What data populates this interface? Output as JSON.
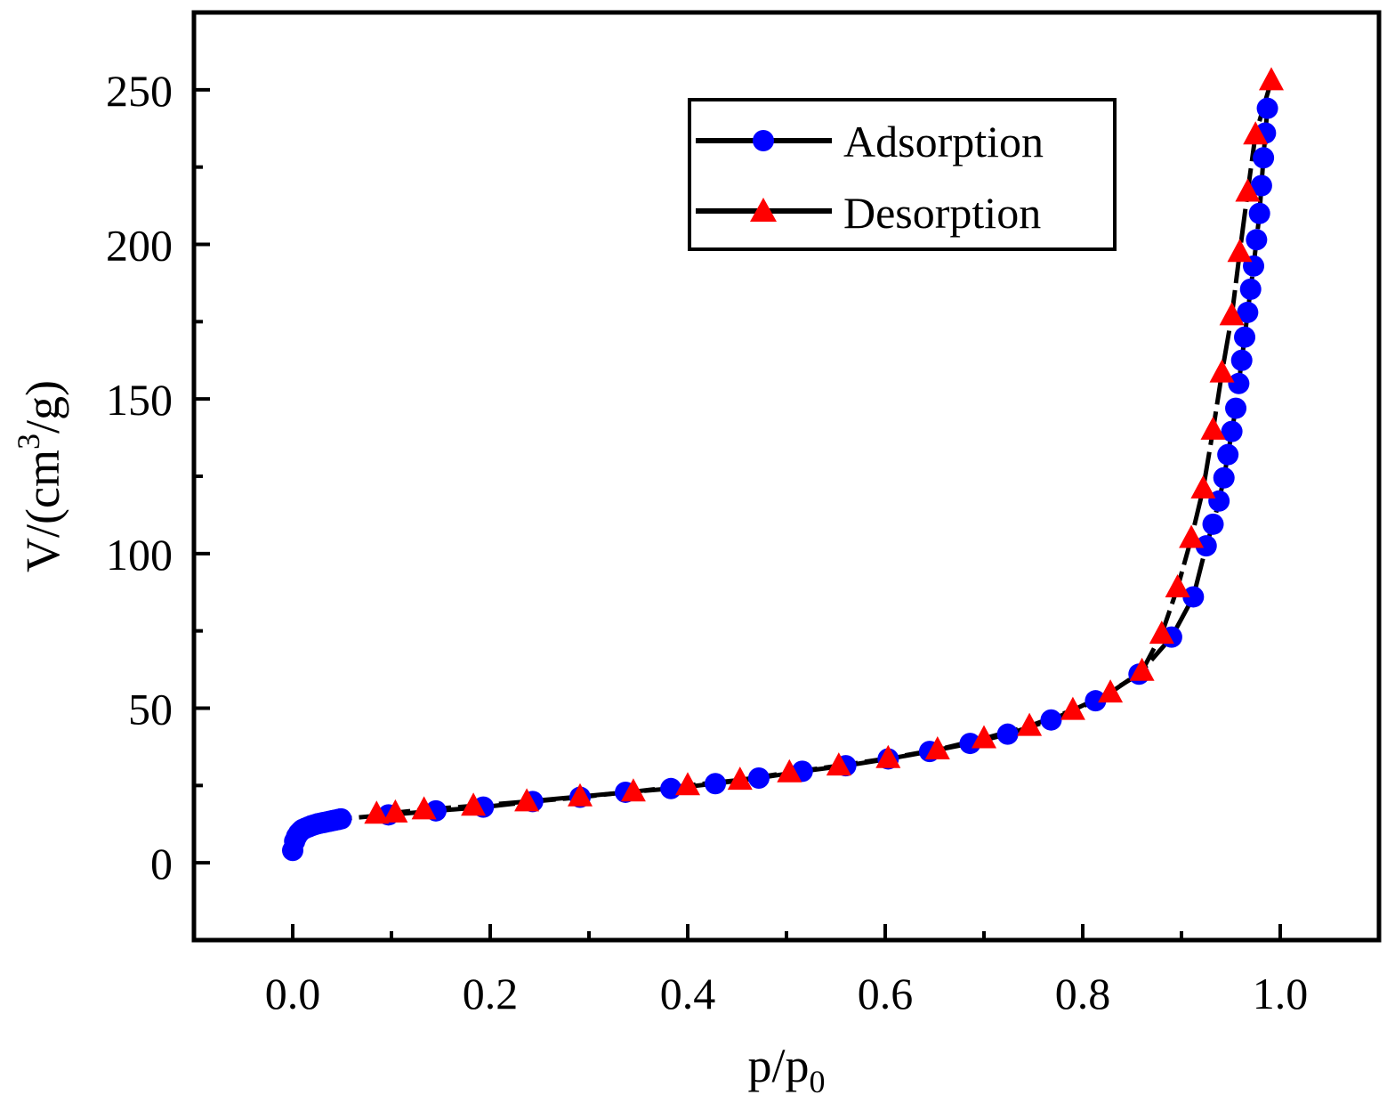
{
  "chart_data": {
    "type": "line",
    "title": "",
    "xlabel": "p/p",
    "xlabel_sub": "0",
    "ylabel_main": "V/(cm",
    "ylabel_sup": "3",
    "ylabel_tail": "/g)",
    "xlim": [
      -0.1,
      1.1
    ],
    "ylim": [
      -25,
      275
    ],
    "xticks": [
      0.0,
      0.2,
      0.4,
      0.6,
      0.8,
      1.0
    ],
    "xtick_labels": [
      "0.0",
      "0.2",
      "0.4",
      "0.6",
      "0.8",
      "1.0"
    ],
    "yticks": [
      0,
      50,
      100,
      150,
      200,
      250
    ],
    "ytick_labels": [
      "0",
      "50",
      "100",
      "150",
      "200",
      "250"
    ],
    "grid": false,
    "legend_position": "top-right",
    "series": [
      {
        "name": "Adsorption",
        "marker": "circle",
        "marker_color": "#0000ff",
        "line_color": "#000000",
        "line_style": "dashed",
        "x": [
          0.0,
          0.002,
          0.004,
          0.006,
          0.008,
          0.01,
          0.013,
          0.016,
          0.019,
          0.022,
          0.025,
          0.028,
          0.031,
          0.034,
          0.037,
          0.04,
          0.043,
          0.046,
          0.049,
          0.097,
          0.145,
          0.193,
          0.243,
          0.291,
          0.337,
          0.383,
          0.428,
          0.472,
          0.516,
          0.56,
          0.603,
          0.645,
          0.686,
          0.724,
          0.768,
          0.813,
          0.857,
          0.89,
          0.912,
          0.925,
          0.932,
          0.938,
          0.943,
          0.947,
          0.951,
          0.955,
          0.958,
          0.961,
          0.964,
          0.967,
          0.97,
          0.973,
          0.976,
          0.979,
          0.981,
          0.983,
          0.985,
          0.987
        ],
        "y": [
          4,
          7,
          8.5,
          9.5,
          10.2,
          10.8,
          11.2,
          11.6,
          12.0,
          12.3,
          12.6,
          12.8,
          13.0,
          13.2,
          13.4,
          13.6,
          13.8,
          14.0,
          14.2,
          15.5,
          16.8,
          18.0,
          19.8,
          21.2,
          22.8,
          24.0,
          25.6,
          27.4,
          29.6,
          31.4,
          33.6,
          36.0,
          38.6,
          41.6,
          46.2,
          52.4,
          61.0,
          73.0,
          86.0,
          102.5,
          109.5,
          117.0,
          124.5,
          132.0,
          139.5,
          147.0,
          155.0,
          162.5,
          170.0,
          178.0,
          185.5,
          193.0,
          201.5,
          210.0,
          219.0,
          228.0,
          236.0,
          244.0
        ]
      },
      {
        "name": "Desorption",
        "marker": "triangle",
        "marker_color": "#ff0000",
        "line_color": "#000000",
        "line_style": "dashed",
        "x": [
          0.085,
          0.104,
          0.133,
          0.183,
          0.237,
          0.291,
          0.345,
          0.4,
          0.453,
          0.503,
          0.553,
          0.603,
          0.653,
          0.7,
          0.746,
          0.79,
          0.828,
          0.86,
          0.88,
          0.896,
          0.91,
          0.922,
          0.932,
          0.941,
          0.951,
          0.959,
          0.967,
          0.975,
          0.991
        ],
        "y": [
          15.8,
          16.2,
          17.2,
          18.4,
          19.8,
          21.4,
          23.0,
          25.0,
          26.8,
          29.2,
          31.4,
          33.8,
          36.6,
          40.2,
          44.2,
          49.4,
          55.0,
          62.0,
          74.0,
          89.0,
          105.0,
          121.0,
          140.0,
          158.5,
          177.0,
          197.5,
          217.0,
          235.5,
          253.0
        ]
      }
    ]
  }
}
